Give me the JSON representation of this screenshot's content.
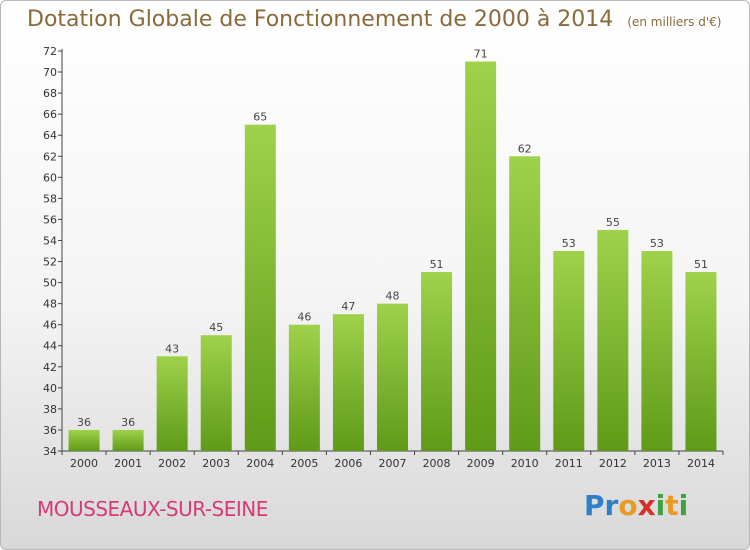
{
  "chart_data": {
    "type": "bar",
    "title": "Dotation Globale de Fonctionnement de 2000 à 2014",
    "unit": "(en milliers d'€)",
    "categories": [
      "2000",
      "2001",
      "2002",
      "2003",
      "2004",
      "2005",
      "2006",
      "2007",
      "2008",
      "2009",
      "2010",
      "2011",
      "2012",
      "2013",
      "2014"
    ],
    "values": [
      36,
      36,
      43,
      45,
      65,
      46,
      47,
      48,
      51,
      71,
      62,
      53,
      55,
      53,
      51
    ],
    "ylim": [
      34,
      72
    ],
    "yticks": [
      34,
      36,
      38,
      40,
      42,
      44,
      46,
      48,
      50,
      52,
      54,
      56,
      58,
      60,
      62,
      64,
      66,
      68,
      70,
      72
    ],
    "grid": false,
    "bar_color": "#7ab52c"
  },
  "location": "MOUSSEAUX-SUR-SEINE",
  "brand": "Proxiti"
}
